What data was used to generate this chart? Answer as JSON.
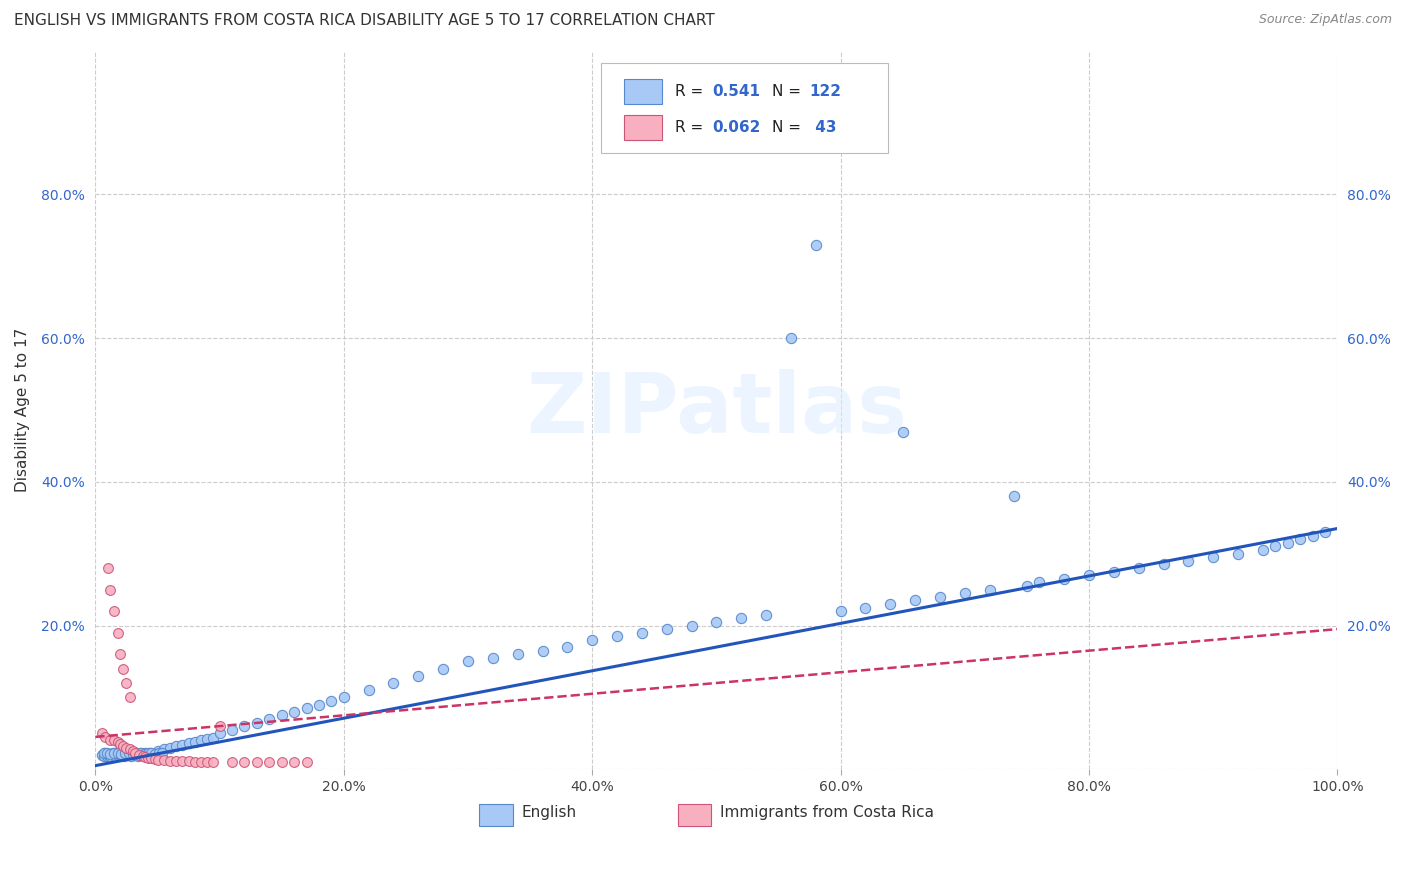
{
  "title": "ENGLISH VS IMMIGRANTS FROM COSTA RICA DISABILITY AGE 5 TO 17 CORRELATION CHART",
  "source": "Source: ZipAtlas.com",
  "ylabel": "Disability Age 5 to 17",
  "xlim": [
    0.0,
    1.0
  ],
  "ylim": [
    0.0,
    1.0
  ],
  "xtick_vals": [
    0.0,
    0.2,
    0.4,
    0.6,
    0.8,
    1.0
  ],
  "xtick_labels": [
    "0.0%",
    "20.0%",
    "40.0%",
    "60.0%",
    "80.0%",
    "100.0%"
  ],
  "ytick_vals": [
    0.0,
    0.2,
    0.4,
    0.6,
    0.8
  ],
  "ytick_labels": [
    "",
    "20.0%",
    "40.0%",
    "60.0%",
    "80.0%"
  ],
  "right_ytick_vals": [
    0.2,
    0.4,
    0.6,
    0.8
  ],
  "right_ytick_labels": [
    "20.0%",
    "40.0%",
    "60.0%",
    "80.0%"
  ],
  "english_face": "#a8c8f5",
  "english_edge": "#5588cc",
  "immigrant_face": "#f8b0c0",
  "immigrant_edge": "#cc5577",
  "english_line_color": "#2255bb",
  "immigrant_line_color": "#cc3366",
  "R_english": 0.541,
  "N_english": 122,
  "R_immigrant": 0.062,
  "N_immigrant": 43,
  "eng_x": [
    0.005,
    0.007,
    0.008,
    0.009,
    0.01,
    0.011,
    0.012,
    0.013,
    0.014,
    0.015,
    0.016,
    0.017,
    0.018,
    0.019,
    0.02,
    0.021,
    0.022,
    0.023,
    0.024,
    0.025,
    0.026,
    0.027,
    0.028,
    0.029,
    0.03,
    0.031,
    0.032,
    0.033,
    0.034,
    0.035,
    0.036,
    0.037,
    0.038,
    0.039,
    0.04,
    0.041,
    0.042,
    0.043,
    0.044,
    0.045,
    0.05,
    0.055,
    0.06,
    0.065,
    0.07,
    0.075,
    0.08,
    0.085,
    0.09,
    0.095,
    0.1,
    0.11,
    0.12,
    0.13,
    0.14,
    0.15,
    0.16,
    0.17,
    0.18,
    0.19,
    0.2,
    0.22,
    0.24,
    0.26,
    0.28,
    0.3,
    0.32,
    0.34,
    0.36,
    0.38,
    0.4,
    0.42,
    0.44,
    0.46,
    0.48,
    0.5,
    0.52,
    0.54,
    0.56,
    0.58,
    0.6,
    0.62,
    0.64,
    0.65,
    0.66,
    0.68,
    0.7,
    0.72,
    0.74,
    0.75,
    0.76,
    0.78,
    0.8,
    0.82,
    0.84,
    0.86,
    0.88,
    0.9,
    0.92,
    0.94,
    0.95,
    0.96,
    0.97,
    0.98,
    0.99,
    0.007,
    0.009,
    0.012,
    0.015,
    0.018,
    0.021,
    0.024,
    0.027,
    0.03,
    0.033,
    0.036,
    0.039,
    0.042,
    0.045,
    0.048,
    0.051,
    0.054
  ],
  "eng_y": [
    0.02,
    0.018,
    0.022,
    0.019,
    0.021,
    0.02,
    0.019,
    0.021,
    0.022,
    0.02,
    0.019,
    0.021,
    0.02,
    0.022,
    0.021,
    0.02,
    0.022,
    0.019,
    0.021,
    0.02,
    0.022,
    0.021,
    0.02,
    0.019,
    0.022,
    0.021,
    0.02,
    0.022,
    0.019,
    0.021,
    0.02,
    0.022,
    0.021,
    0.02,
    0.022,
    0.021,
    0.02,
    0.019,
    0.022,
    0.021,
    0.025,
    0.028,
    0.03,
    0.032,
    0.034,
    0.036,
    0.038,
    0.04,
    0.042,
    0.044,
    0.05,
    0.055,
    0.06,
    0.065,
    0.07,
    0.075,
    0.08,
    0.085,
    0.09,
    0.095,
    0.1,
    0.11,
    0.12,
    0.13,
    0.14,
    0.15,
    0.155,
    0.16,
    0.165,
    0.17,
    0.18,
    0.185,
    0.19,
    0.195,
    0.2,
    0.205,
    0.21,
    0.215,
    0.6,
    0.73,
    0.22,
    0.225,
    0.23,
    0.47,
    0.235,
    0.24,
    0.245,
    0.25,
    0.38,
    0.255,
    0.26,
    0.265,
    0.27,
    0.275,
    0.28,
    0.285,
    0.29,
    0.295,
    0.3,
    0.305,
    0.31,
    0.315,
    0.32,
    0.325,
    0.33,
    0.023,
    0.022,
    0.021,
    0.023,
    0.022,
    0.021,
    0.023,
    0.022,
    0.021,
    0.023,
    0.022,
    0.021,
    0.023,
    0.022,
    0.021,
    0.023,
    0.022
  ],
  "imm_x": [
    0.005,
    0.008,
    0.01,
    0.012,
    0.012,
    0.015,
    0.015,
    0.018,
    0.018,
    0.02,
    0.02,
    0.022,
    0.022,
    0.025,
    0.025,
    0.028,
    0.028,
    0.03,
    0.032,
    0.035,
    0.038,
    0.04,
    0.042,
    0.045,
    0.048,
    0.05,
    0.055,
    0.06,
    0.065,
    0.07,
    0.075,
    0.08,
    0.085,
    0.09,
    0.095,
    0.1,
    0.11,
    0.12,
    0.13,
    0.14,
    0.15,
    0.16,
    0.17
  ],
  "imm_y": [
    0.05,
    0.045,
    0.28,
    0.25,
    0.04,
    0.22,
    0.04,
    0.19,
    0.038,
    0.16,
    0.035,
    0.14,
    0.033,
    0.12,
    0.03,
    0.1,
    0.028,
    0.025,
    0.022,
    0.02,
    0.018,
    0.017,
    0.016,
    0.015,
    0.014,
    0.013,
    0.013,
    0.012,
    0.012,
    0.011,
    0.011,
    0.01,
    0.01,
    0.01,
    0.01,
    0.06,
    0.01,
    0.01,
    0.01,
    0.01,
    0.01,
    0.01,
    0.01
  ],
  "eng_trend_x": [
    0.0,
    1.0
  ],
  "eng_trend_y": [
    0.005,
    0.335
  ],
  "imm_trend_x": [
    0.0,
    1.0
  ],
  "imm_trend_y": [
    0.045,
    0.195
  ],
  "watermark": "ZIPatlas",
  "bg_color": "#ffffff",
  "grid_color": "#cccccc"
}
